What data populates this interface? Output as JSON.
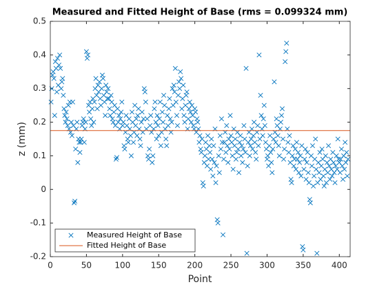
{
  "chart_data": {
    "type": "scatter",
    "title": "Measured and Fitted Height of Base (rms = 0.099324 mm)",
    "xlabel": "Point",
    "ylabel": "z (mm)",
    "xlim": [
      0,
      415
    ],
    "xticks": [
      0,
      50,
      100,
      150,
      200,
      250,
      300,
      350,
      400
    ],
    "ylim": [
      -0.2,
      0.5
    ],
    "yticks": [
      -0.2,
      -0.1,
      0,
      0.1,
      0.2,
      0.3,
      0.4,
      0.5
    ],
    "legend": "lower left",
    "series": [
      {
        "name": "Measured Height of Base",
        "color": "#0072bd",
        "marker": "x",
        "x": [
          1,
          2,
          3,
          4,
          5,
          6,
          7,
          8,
          9,
          10,
          11,
          12,
          13,
          14,
          15,
          16,
          17,
          18,
          19,
          20,
          21,
          22,
          23,
          24,
          25,
          26,
          27,
          28,
          29,
          30,
          31,
          32,
          33,
          34,
          35,
          36,
          37,
          38,
          39,
          40,
          41,
          42,
          43,
          44,
          45,
          46,
          47,
          48,
          49,
          50,
          51,
          52,
          53,
          54,
          55,
          56,
          57,
          58,
          59,
          60,
          61,
          62,
          63,
          64,
          65,
          66,
          67,
          68,
          69,
          70,
          71,
          72,
          73,
          74,
          75,
          76,
          77,
          78,
          79,
          80,
          81,
          82,
          83,
          84,
          85,
          86,
          87,
          88,
          89,
          90,
          91,
          92,
          93,
          94,
          95,
          96,
          97,
          98,
          99,
          100,
          101,
          102,
          103,
          104,
          105,
          106,
          107,
          108,
          109,
          110,
          111,
          112,
          113,
          114,
          115,
          116,
          117,
          118,
          119,
          120,
          121,
          122,
          123,
          124,
          125,
          126,
          127,
          128,
          129,
          130,
          131,
          132,
          133,
          134,
          135,
          136,
          137,
          138,
          139,
          140,
          141,
          142,
          143,
          144,
          145,
          146,
          147,
          148,
          149,
          150,
          151,
          152,
          153,
          154,
          155,
          156,
          157,
          158,
          159,
          160,
          161,
          162,
          163,
          164,
          165,
          166,
          167,
          168,
          169,
          170,
          171,
          172,
          173,
          174,
          175,
          176,
          177,
          178,
          179,
          180,
          181,
          182,
          183,
          184,
          185,
          186,
          187,
          188,
          189,
          190,
          191,
          192,
          193,
          194,
          195,
          196,
          197,
          198,
          199,
          200,
          201,
          202,
          203,
          204,
          205,
          206,
          207,
          208,
          209,
          210,
          211,
          212,
          213,
          214,
          215,
          216,
          217,
          218,
          219,
          220,
          221,
          222,
          223,
          224,
          225,
          226,
          227,
          228,
          229,
          230,
          231,
          232,
          233,
          234,
          235,
          236,
          237,
          238,
          239,
          240,
          241,
          242,
          243,
          244,
          245,
          246,
          247,
          248,
          249,
          250,
          251,
          252,
          253,
          254,
          255,
          256,
          257,
          258,
          259,
          260,
          261,
          262,
          263,
          264,
          265,
          266,
          267,
          268,
          269,
          270,
          271,
          272,
          273,
          274,
          275,
          276,
          277,
          278,
          279,
          280,
          281,
          282,
          283,
          284,
          285,
          286,
          287,
          288,
          289,
          290,
          291,
          292,
          293,
          294,
          295,
          296,
          297,
          298,
          299,
          300,
          301,
          302,
          303,
          304,
          305,
          306,
          307,
          308,
          309,
          310,
          311,
          312,
          313,
          314,
          315,
          316,
          317,
          318,
          319,
          320,
          321,
          322,
          323,
          324,
          325,
          326,
          327,
          328,
          329,
          330,
          331,
          332,
          333,
          334,
          335,
          336,
          337,
          338,
          339,
          340,
          341,
          342,
          343,
          344,
          345,
          346,
          347,
          348,
          349,
          350,
          351,
          352,
          353,
          354,
          355,
          356,
          357,
          358,
          359,
          360,
          361,
          362,
          363,
          364,
          365,
          366,
          367,
          368,
          369,
          370,
          371,
          372,
          373,
          374,
          375,
          376,
          377,
          378,
          379,
          380,
          381,
          382,
          383,
          384,
          385,
          386,
          387,
          388,
          389,
          390,
          391,
          392,
          393,
          394,
          395,
          396,
          397,
          398,
          399,
          400,
          401,
          402,
          403,
          404,
          405,
          406,
          407,
          408,
          409,
          410,
          411,
          412
        ],
        "values": [
          0.26,
          0.3,
          0.34,
          0.35,
          0.33,
          0.22,
          0.38,
          0.36,
          0.29,
          0.39,
          0.31,
          0.37,
          0.4,
          0.36,
          0.3,
          0.32,
          0.33,
          0.28,
          0.24,
          0.22,
          0.2,
          0.23,
          0.21,
          0.19,
          0.25,
          0.18,
          0.26,
          0.17,
          0.2,
          0.16,
          0.26,
          0.19,
          -0.04,
          -0.035,
          0.12,
          0.18,
          0.2,
          0.08,
          0.15,
          0.14,
          0.11,
          0.14,
          0.15,
          0.19,
          0.2,
          0.21,
          0.14,
          0.18,
          0.2,
          0.41,
          0.39,
          0.4,
          0.25,
          0.23,
          0.26,
          0.21,
          0.19,
          0.24,
          0.27,
          0.2,
          0.26,
          0.3,
          0.33,
          0.28,
          0.24,
          0.31,
          0.29,
          0.32,
          0.27,
          0.25,
          0.3,
          0.34,
          0.33,
          0.28,
          0.26,
          0.22,
          0.31,
          0.29,
          0.27,
          0.3,
          0.27,
          0.24,
          0.22,
          0.28,
          0.26,
          0.21,
          0.2,
          0.23,
          0.25,
          0.19,
          0.09,
          0.095,
          0.24,
          0.2,
          0.22,
          0.18,
          0.21,
          0.23,
          0.26,
          0.19,
          0.2,
          0.13,
          0.12,
          0.17,
          0.22,
          0.19,
          0.15,
          0.14,
          0.21,
          0.18,
          0.16,
          0.1,
          0.23,
          0.2,
          0.14,
          0.17,
          0.25,
          0.19,
          0.21,
          0.16,
          0.22,
          0.24,
          0.18,
          0.15,
          0.13,
          0.2,
          0.23,
          0.17,
          0.21,
          0.3,
          0.29,
          0.26,
          0.18,
          0.21,
          0.1,
          0.09,
          0.12,
          0.19,
          0.22,
          0.17,
          0.08,
          0.1,
          0.18,
          0.24,
          0.26,
          0.2,
          0.15,
          0.22,
          0.19,
          0.16,
          0.21,
          0.26,
          0.13,
          0.17,
          0.23,
          0.2,
          0.28,
          0.25,
          0.18,
          0.15,
          0.13,
          0.22,
          0.19,
          0.24,
          0.27,
          0.21,
          0.17,
          0.2,
          0.3,
          0.25,
          0.31,
          0.29,
          0.36,
          0.26,
          0.22,
          0.19,
          0.28,
          0.32,
          0.3,
          0.35,
          0.33,
          0.24,
          0.27,
          0.31,
          0.22,
          0.2,
          0.25,
          0.28,
          0.29,
          0.18,
          0.21,
          0.24,
          0.26,
          0.23,
          0.2,
          0.25,
          0.22,
          0.19,
          0.18,
          0.24,
          0.23,
          0.17,
          0.21,
          0.2,
          0.18,
          0.14,
          0.16,
          0.12,
          0.11,
          0.15,
          0.02,
          0.01,
          0.08,
          0.1,
          0.14,
          0.12,
          0.07,
          0.16,
          0.09,
          0.13,
          0.11,
          0.06,
          0.15,
          0.09,
          0.04,
          0.13,
          0.08,
          0.18,
          0.02,
          0.07,
          -0.09,
          -0.1,
          0.1,
          0.05,
          0.16,
          0.12,
          0.21,
          0.14,
          -0.135,
          0.09,
          0.14,
          0.17,
          0.11,
          0.19,
          0.13,
          0.08,
          0.15,
          0.12,
          0.22,
          0.16,
          0.14,
          0.1,
          0.06,
          0.18,
          0.13,
          0.15,
          0.09,
          0.11,
          0.17,
          0.12,
          0.05,
          0.14,
          0.16,
          0.1,
          0.13,
          0.08,
          0.12,
          0.19,
          0.15,
          0.11,
          0.36,
          -0.19,
          0.07,
          0.14,
          0.17,
          0.1,
          0.13,
          0.15,
          0.18,
          0.12,
          0.16,
          0.2,
          0.14,
          0.11,
          0.09,
          0.17,
          0.19,
          0.13,
          0.4,
          0.15,
          0.28,
          0.22,
          0.18,
          0.16,
          0.21,
          0.25,
          0.19,
          0.14,
          0.12,
          0.09,
          0.1,
          0.07,
          0.13,
          0.16,
          0.11,
          0.08,
          0.05,
          0.12,
          0.15,
          0.32,
          0.17,
          0.14,
          0.21,
          0.19,
          0.16,
          0.13,
          0.1,
          0.18,
          0.2,
          0.22,
          0.24,
          0.15,
          0.09,
          0.12,
          0.38,
          0.41,
          0.435,
          0.18,
          0.14,
          0.11,
          0.16,
          0.08,
          0.03,
          0.02,
          0.1,
          0.13,
          0.07,
          0.09,
          0.12,
          0.06,
          0.14,
          0.09,
          0.11,
          0.05,
          0.08,
          0.1,
          0.04,
          0.13,
          -0.17,
          -0.18,
          0.06,
          0.09,
          0.12,
          0.03,
          0.08,
          0.11,
          0.05,
          0.02,
          -0.03,
          -0.04,
          0.1,
          0.07,
          0.13,
          0.01,
          0.04,
          0.09,
          0.15,
          0.06,
          -0.19,
          0.02,
          0.08,
          0.05,
          0.11,
          0.03,
          0.07,
          0.12,
          0.09,
          0.04,
          0.01,
          0.06,
          0.1,
          0.02,
          0.08,
          0.05,
          0.13,
          0.07,
          0.03,
          0.09,
          0.06,
          0.04,
          0.11,
          0.08,
          0.05,
          0.02,
          0.07,
          0.1,
          0.06,
          0.15,
          0.09,
          0.08,
          0.05,
          0.09,
          0.12,
          0.07,
          0.03,
          0.1,
          0.06,
          0.14,
          0.08,
          0.11,
          0.04,
          0.09
        ]
      },
      {
        "name": "Fitted Height of Base",
        "color": "#d95319",
        "marker": "line",
        "x": [
          0,
          415
        ],
        "values": [
          0.175,
          0.175
        ]
      }
    ]
  }
}
